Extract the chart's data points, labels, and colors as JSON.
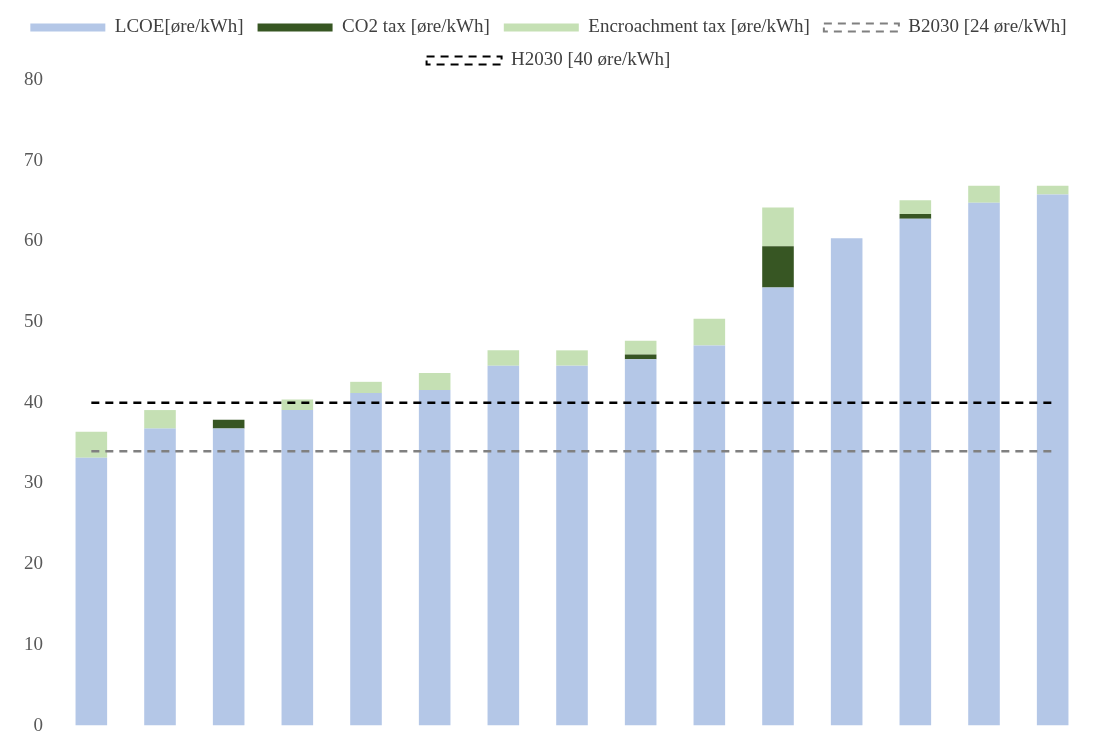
{
  "chart_data": {
    "type": "bar",
    "stacked": true,
    "categories": [
      null,
      null,
      null,
      null,
      null,
      null,
      null,
      null,
      null,
      null,
      null,
      null,
      null,
      null,
      null
    ],
    "series": [
      {
        "name": "LCOE[øre/kWh]",
        "color": "#b4c7e7",
        "values": [
          33.2,
          36.8,
          36.8,
          39.1,
          41.2,
          41.6,
          44.6,
          44.6,
          45.4,
          47.1,
          54.3,
          60.4,
          62.8,
          64.8,
          65.8
        ]
      },
      {
        "name": "CO2 tax [øre/kWh]",
        "color": "#375623",
        "values": [
          null,
          null,
          1.1,
          null,
          null,
          null,
          null,
          null,
          0.6,
          null,
          5.1,
          null,
          0.6,
          null,
          null
        ]
      },
      {
        "name": "Encroachment tax [øre/kWh]",
        "color": "#c5e0b4",
        "values": [
          3.2,
          2.3,
          null,
          1.3,
          1.4,
          2.1,
          1.9,
          1.9,
          1.7,
          3.3,
          4.8,
          null,
          1.7,
          2.1,
          1.1
        ]
      }
    ],
    "ref_lines": [
      {
        "axis": "y",
        "value": 34,
        "label": "B2030 [24 øre/kWh]",
        "color": "#808080",
        "line_style": "dashed"
      },
      {
        "axis": "y",
        "value": 40,
        "label": "H2030 [40 øre/kWh]",
        "color": "#000000",
        "line_style": "dashed"
      }
    ],
    "ylim": [
      0,
      80
    ],
    "yticks": [
      0,
      10,
      20,
      30,
      40,
      50,
      60,
      70,
      80
    ],
    "grid": false,
    "legend": "top"
  }
}
